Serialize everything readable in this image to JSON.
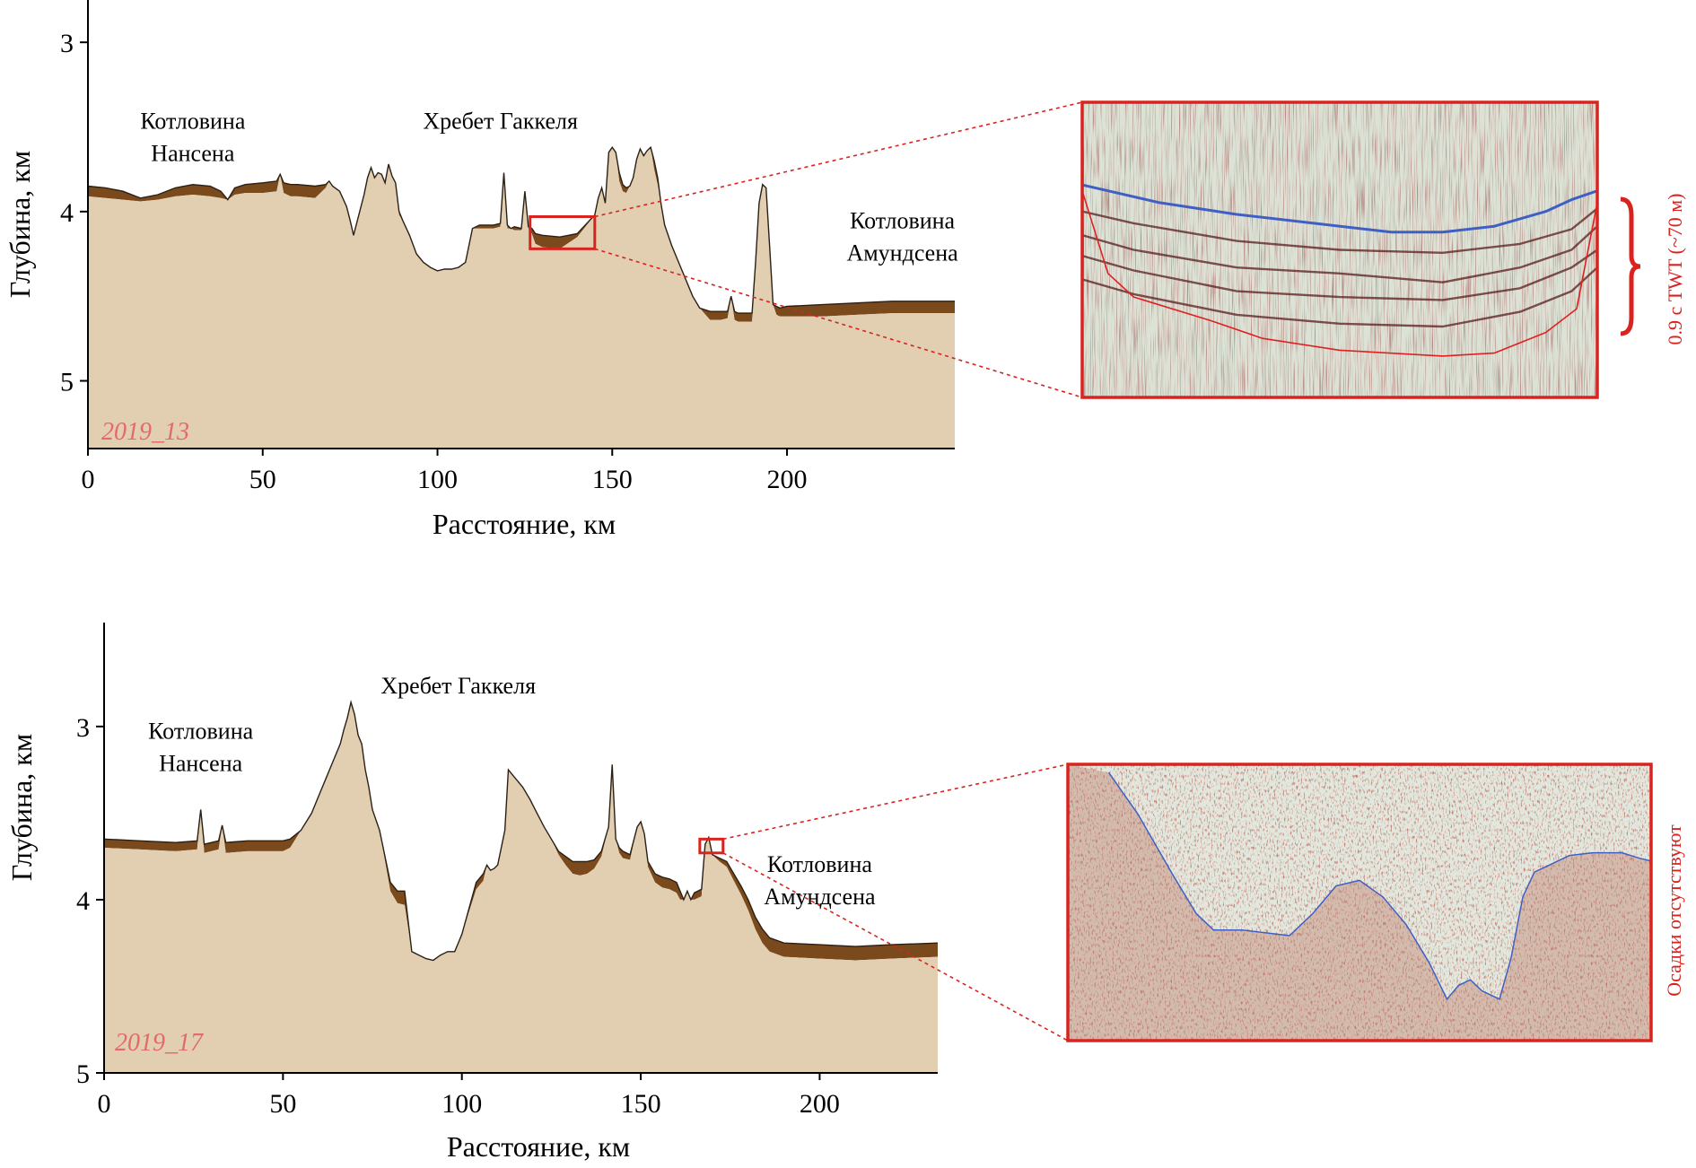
{
  "chart_data": [
    {
      "type": "area",
      "id": "2019_13",
      "line_label": "2019_13",
      "xlabel": "Расстояние, км",
      "ylabel": "Глубина, км",
      "xlim": [
        0,
        248
      ],
      "ylim": [
        2.75,
        5.4
      ],
      "y_inverted": true,
      "xticks": [
        0,
        50,
        100,
        150,
        200
      ],
      "yticks": [
        3,
        4,
        5
      ],
      "labels": [
        {
          "lines": [
            "Котловина",
            "Нансена"
          ],
          "x": 30,
          "y": 3.51
        },
        {
          "lines": [
            "Хребет Гаккеля"
          ],
          "x": 118,
          "y": 3.51
        },
        {
          "lines": [
            "Котловина",
            "Амундсена"
          ],
          "x": 233,
          "y": 4.1
        }
      ],
      "seafloor": {
        "x": [
          0,
          5,
          10,
          15,
          20,
          25,
          30,
          35,
          38,
          40,
          42,
          45,
          50,
          54,
          55,
          56,
          58,
          60,
          65,
          68,
          69,
          70,
          72,
          74,
          75,
          76,
          77,
          78,
          79,
          80,
          81,
          82,
          83,
          84,
          85,
          86,
          87,
          88,
          89,
          90,
          92,
          94,
          96,
          98,
          100,
          102,
          104,
          106,
          108,
          110,
          112,
          114,
          116,
          118,
          119,
          120,
          121,
          122,
          124,
          125,
          126,
          127,
          128,
          130,
          135,
          140,
          145,
          146,
          147,
          148,
          149,
          150,
          151,
          152,
          153,
          154,
          155,
          156,
          157,
          158,
          159,
          160,
          161,
          162,
          163,
          164,
          165,
          167,
          169,
          171,
          173,
          175,
          178,
          181,
          183,
          184,
          185,
          186,
          188,
          190,
          191,
          192,
          193,
          194,
          195,
          196,
          197,
          198,
          200,
          210,
          220,
          230,
          240,
          248
        ],
        "y": [
          3.85,
          3.86,
          3.88,
          3.92,
          3.9,
          3.86,
          3.84,
          3.85,
          3.88,
          3.93,
          3.86,
          3.84,
          3.83,
          3.82,
          3.78,
          3.83,
          3.84,
          3.84,
          3.85,
          3.84,
          3.82,
          3.85,
          3.88,
          3.97,
          4.05,
          4.14,
          4.06,
          3.98,
          3.9,
          3.8,
          3.74,
          3.8,
          3.77,
          3.78,
          3.83,
          3.72,
          3.79,
          3.83,
          4.0,
          4.05,
          4.14,
          4.25,
          4.3,
          4.33,
          4.35,
          4.34,
          4.34,
          4.33,
          4.3,
          4.1,
          4.08,
          4.08,
          4.08,
          4.07,
          3.77,
          4.08,
          4.1,
          4.09,
          4.1,
          3.88,
          4.09,
          4.1,
          4.13,
          4.14,
          4.15,
          4.13,
          4.02,
          3.92,
          3.86,
          3.95,
          3.65,
          3.62,
          3.65,
          3.77,
          3.84,
          3.86,
          3.85,
          3.8,
          3.69,
          3.63,
          3.67,
          3.64,
          3.62,
          3.7,
          3.8,
          3.96,
          4.08,
          4.2,
          4.3,
          4.4,
          4.5,
          4.57,
          4.59,
          4.59,
          4.59,
          4.5,
          4.59,
          4.6,
          4.6,
          4.6,
          4.3,
          3.95,
          3.84,
          3.86,
          4.2,
          4.55,
          4.56,
          4.57,
          4.56,
          4.55,
          4.54,
          4.53,
          4.53,
          4.53
        ],
        "sediment_thickness_km": [
          0.06,
          0.06,
          0.05,
          0.02,
          0.03,
          0.05,
          0.06,
          0.06,
          0.04,
          0,
          0.04,
          0.05,
          0.06,
          0.06,
          0,
          0.06,
          0.07,
          0.07,
          0.07,
          0.02,
          0,
          0,
          0,
          0,
          0,
          0,
          0,
          0,
          0,
          0,
          0,
          0,
          0,
          0,
          0,
          0,
          0,
          0,
          0.02,
          0,
          0,
          0,
          0,
          0,
          0,
          0,
          0,
          0,
          0,
          0,
          0.02,
          0.02,
          0.02,
          0.02,
          0,
          0.02,
          0,
          0.02,
          0.01,
          0,
          0.01,
          0.03,
          0.06,
          0.07,
          0.07,
          0.02,
          0,
          0,
          0,
          0,
          0,
          0,
          0,
          0.05,
          0.04,
          0.03,
          0,
          0,
          0,
          0,
          0,
          0,
          0,
          0.05,
          0.04,
          0,
          0,
          0,
          0,
          0,
          0,
          0,
          0.05,
          0.05,
          0.04,
          0,
          0.05,
          0.05,
          0.05,
          0.05,
          0,
          0,
          0,
          0,
          0,
          0,
          0.05,
          0.05,
          0.06,
          0.07,
          0.07,
          0.07,
          0.07,
          0.07
        ]
      },
      "zoom_box": {
        "x": [
          126.5,
          145
        ],
        "y": [
          4.03,
          4.22
        ]
      },
      "inset": {
        "type": "seismic",
        "annotation": "0.9 с TWT (~70 м)",
        "horizons": [
          {
            "role": "seafloor",
            "color": "#3f5fc5",
            "x": [
              0,
              0.05,
              0.15,
              0.3,
              0.45,
              0.6,
              0.7,
              0.8,
              0.9,
              0.95,
              1
            ],
            "y": [
              0.28,
              0.3,
              0.34,
              0.38,
              0.41,
              0.44,
              0.44,
              0.42,
              0.37,
              0.33,
              0.3
            ]
          },
          {
            "role": "reflector",
            "color": "#5a1c1c",
            "x": [
              0,
              0.1,
              0.3,
              0.5,
              0.7,
              0.85,
              0.95,
              1
            ],
            "y": [
              0.37,
              0.41,
              0.47,
              0.5,
              0.51,
              0.48,
              0.43,
              0.36
            ]
          },
          {
            "role": "reflector",
            "color": "#5a1c1c",
            "x": [
              0,
              0.1,
              0.3,
              0.5,
              0.7,
              0.85,
              0.95,
              1
            ],
            "y": [
              0.45,
              0.5,
              0.56,
              0.58,
              0.61,
              0.56,
              0.5,
              0.42
            ]
          },
          {
            "role": "reflector",
            "color": "#5a1c1c",
            "x": [
              0,
              0.1,
              0.3,
              0.5,
              0.7,
              0.85,
              0.95,
              1
            ],
            "y": [
              0.52,
              0.57,
              0.64,
              0.66,
              0.67,
              0.63,
              0.56,
              0.5
            ]
          },
          {
            "role": "reflector",
            "color": "#5a1c1c",
            "x": [
              0,
              0.1,
              0.3,
              0.5,
              0.7,
              0.85,
              0.95,
              1
            ],
            "y": [
              0.6,
              0.65,
              0.72,
              0.75,
              0.76,
              0.71,
              0.64,
              0.56
            ]
          },
          {
            "role": "basement",
            "color": "#e02020",
            "x": [
              0,
              0.05,
              0.1,
              0.25,
              0.35,
              0.5,
              0.7,
              0.8,
              0.9,
              0.96,
              1
            ],
            "y": [
              0.3,
              0.58,
              0.66,
              0.74,
              0.8,
              0.84,
              0.86,
              0.85,
              0.78,
              0.7,
              0.34
            ]
          }
        ]
      }
    },
    {
      "type": "area",
      "id": "2019_17",
      "line_label": "2019_17",
      "xlabel": "Расстояние, км",
      "ylabel": "Глубина, км",
      "xlim": [
        0,
        233
      ],
      "ylim": [
        2.4,
        5.0
      ],
      "y_inverted": true,
      "xticks": [
        0,
        50,
        100,
        150,
        200
      ],
      "yticks": [
        3,
        4,
        5
      ],
      "labels": [
        {
          "lines": [
            "Котловина",
            "Нансена"
          ],
          "x": 27,
          "y": 3.07
        },
        {
          "lines": [
            "Хребет Гаккеля"
          ],
          "x": 99,
          "y": 2.81
        },
        {
          "lines": [
            "Котловина",
            "Амундсена"
          ],
          "x": 200,
          "y": 3.84
        }
      ],
      "seafloor": {
        "x": [
          0,
          10,
          20,
          26,
          27,
          28,
          32,
          33,
          34,
          40,
          50,
          52,
          55,
          58,
          60,
          62,
          64,
          66,
          67,
          68,
          69,
          70,
          71,
          72,
          73,
          74,
          75,
          77,
          80,
          82,
          84,
          86,
          88,
          90,
          92,
          94,
          96,
          98,
          100,
          102,
          104,
          106,
          107,
          108,
          109,
          110,
          112,
          113,
          115,
          117,
          119,
          121,
          123,
          125,
          127,
          129,
          131,
          133,
          135,
          137,
          139,
          141,
          142,
          143,
          144,
          145,
          147,
          149,
          150,
          151,
          152,
          154,
          156,
          158,
          160,
          161,
          162,
          163,
          164,
          165,
          167,
          168,
          169,
          170,
          171,
          172,
          174,
          176,
          178,
          180,
          182,
          184,
          186,
          190,
          200,
          210,
          220,
          233
        ],
        "y": [
          3.65,
          3.66,
          3.67,
          3.66,
          3.48,
          3.68,
          3.66,
          3.57,
          3.67,
          3.66,
          3.66,
          3.65,
          3.6,
          3.5,
          3.4,
          3.3,
          3.2,
          3.1,
          3.02,
          2.95,
          2.86,
          2.93,
          3.05,
          3.1,
          3.25,
          3.35,
          3.48,
          3.6,
          3.9,
          3.95,
          3.95,
          4.3,
          4.32,
          4.34,
          4.35,
          4.32,
          4.3,
          4.3,
          4.2,
          4.05,
          3.9,
          3.85,
          3.8,
          3.83,
          3.82,
          3.8,
          3.6,
          3.25,
          3.3,
          3.35,
          3.42,
          3.5,
          3.58,
          3.65,
          3.72,
          3.75,
          3.78,
          3.78,
          3.78,
          3.77,
          3.72,
          3.58,
          3.22,
          3.65,
          3.7,
          3.72,
          3.74,
          3.58,
          3.55,
          3.62,
          3.78,
          3.85,
          3.87,
          3.88,
          3.9,
          3.95,
          4.0,
          3.95,
          4.0,
          3.96,
          3.94,
          3.68,
          3.64,
          3.74,
          3.75,
          3.76,
          3.78,
          3.85,
          3.92,
          4.0,
          4.1,
          4.17,
          4.22,
          4.25,
          4.26,
          4.27,
          4.26,
          4.25
        ],
        "sediment_thickness_km": [
          0.05,
          0.05,
          0.05,
          0.05,
          0,
          0.05,
          0.05,
          0,
          0.06,
          0.06,
          0.06,
          0.05,
          0,
          0,
          0,
          0,
          0,
          0,
          0,
          0,
          0,
          0,
          0,
          0,
          0,
          0,
          0,
          0,
          0.05,
          0.07,
          0.08,
          0,
          0,
          0,
          0,
          0,
          0,
          0,
          0,
          0.02,
          0.04,
          0.04,
          0,
          0,
          0,
          0,
          0,
          0,
          0,
          0,
          0,
          0,
          0,
          0,
          0.02,
          0.05,
          0.07,
          0.08,
          0.07,
          0.05,
          0.03,
          0,
          0,
          0,
          0.03,
          0.04,
          0.03,
          0,
          0,
          0,
          0.03,
          0.05,
          0.06,
          0.06,
          0.06,
          0.05,
          0,
          0,
          0,
          0.04,
          0.04,
          0,
          0,
          0,
          0.01,
          0.02,
          0.03,
          0.04,
          0.05,
          0.06,
          0.07,
          0.08,
          0.08,
          0.08,
          0.08,
          0.08,
          0.08,
          0.08
        ]
      },
      "zoom_box": {
        "x": [
          166.5,
          173
        ],
        "y": [
          3.65,
          3.73
        ]
      },
      "inset": {
        "type": "seismic",
        "annotation": "Осадки отсутствуют",
        "horizons": [
          {
            "role": "seafloor",
            "color": "#3f5fc5",
            "x": [
              0.07,
              0.12,
              0.18,
              0.22,
              0.25,
              0.3,
              0.34,
              0.38,
              0.42,
              0.46,
              0.5,
              0.54,
              0.58,
              0.62,
              0.65,
              0.67,
              0.69,
              0.71,
              0.74,
              0.76,
              0.78,
              0.8,
              0.83,
              0.86,
              0.9,
              0.95,
              0.98,
              1.0
            ],
            "y": [
              0.03,
              0.18,
              0.4,
              0.54,
              0.6,
              0.6,
              0.61,
              0.62,
              0.54,
              0.44,
              0.42,
              0.48,
              0.58,
              0.72,
              0.85,
              0.8,
              0.78,
              0.82,
              0.85,
              0.7,
              0.48,
              0.39,
              0.36,
              0.33,
              0.32,
              0.32,
              0.34,
              0.35
            ]
          }
        ]
      }
    }
  ]
}
